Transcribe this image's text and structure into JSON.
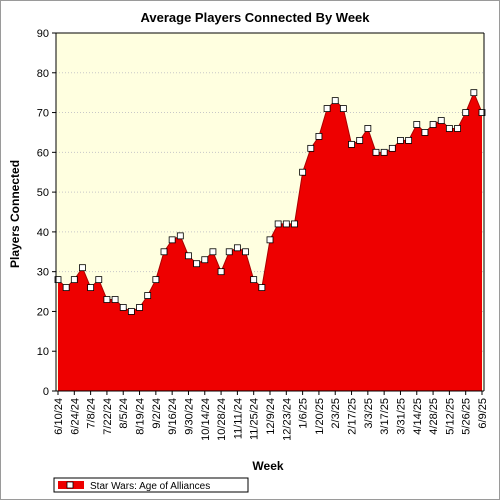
{
  "chart_data": {
    "type": "area",
    "title": "Average Players Connected By Week",
    "xlabel": "Week",
    "ylabel": "Players Connected",
    "ylim": [
      0,
      90
    ],
    "yticks": [
      0,
      10,
      20,
      30,
      40,
      50,
      60,
      70,
      80,
      90
    ],
    "x_tick_labels": [
      "6/10/24",
      "6/24/24",
      "7/8/24",
      "7/22/24",
      "8/5/24",
      "8/19/24",
      "9/2/24",
      "9/16/24",
      "9/30/24",
      "10/14/24",
      "10/28/24",
      "11/11/24",
      "11/25/24",
      "12/9/24",
      "12/23/24",
      "1/6/25",
      "1/20/25",
      "2/3/25",
      "2/17/25",
      "3/3/25",
      "3/17/25",
      "3/31/25",
      "4/14/25",
      "4/28/25",
      "5/12/25",
      "5/26/25",
      "6/9/25"
    ],
    "x": [
      "6/10/24",
      "6/17/24",
      "6/24/24",
      "7/1/24",
      "7/8/24",
      "7/15/24",
      "7/22/24",
      "7/29/24",
      "8/5/24",
      "8/12/24",
      "8/19/24",
      "8/26/24",
      "9/2/24",
      "9/9/24",
      "9/16/24",
      "9/23/24",
      "9/30/24",
      "10/7/24",
      "10/14/24",
      "10/21/24",
      "10/28/24",
      "11/4/24",
      "11/11/24",
      "11/18/24",
      "11/25/24",
      "12/2/24",
      "12/9/24",
      "12/16/24",
      "12/23/24",
      "12/30/24",
      "1/6/25",
      "1/13/25",
      "1/20/25",
      "1/27/25",
      "2/3/25",
      "2/10/25",
      "2/17/25",
      "2/24/25",
      "3/3/25",
      "3/10/25",
      "3/17/25",
      "3/24/25",
      "3/31/25",
      "4/7/25",
      "4/14/25",
      "4/21/25",
      "4/28/25",
      "5/5/25",
      "5/12/25",
      "5/19/25",
      "5/26/25",
      "6/2/25",
      "6/9/25"
    ],
    "series": [
      {
        "name": "Star Wars: Age of Alliances",
        "values": [
          28,
          26,
          28,
          31,
          26,
          28,
          23,
          23,
          21,
          20,
          21,
          24,
          28,
          35,
          38,
          39,
          34,
          32,
          33,
          35,
          30,
          35,
          36,
          35,
          28,
          26,
          38,
          42,
          42,
          42,
          55,
          61,
          64,
          71,
          73,
          71,
          62,
          63,
          66,
          60,
          60,
          61,
          63,
          63,
          67,
          65,
          67,
          68,
          66,
          66,
          70,
          75,
          70
        ]
      }
    ],
    "colors": {
      "area": "#ee0000",
      "line": "#aa0000",
      "marker_fill": "#ffffff",
      "plot_bg": "#ffffe0",
      "grid": "#c8c8c8"
    },
    "grid": true,
    "legend_position": "bottom-left"
  }
}
